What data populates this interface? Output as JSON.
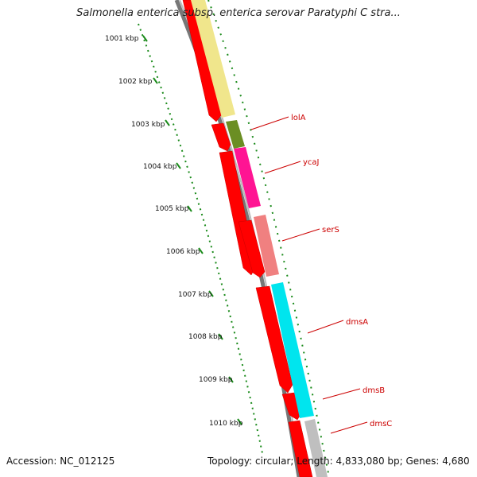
{
  "title": "Salmonella enterica subsp. enterica serovar Paratyphi C stra...",
  "footer": {
    "accession": "Accession: NC_012125",
    "summary": "Topology: circular; Length: 4,833,080 bp; Genes: 4,680"
  },
  "ruler": {
    "labels": [
      "1001 kbp",
      "1002 kbp",
      "1003 kbp",
      "1004 kbp",
      "1005 kbp",
      "1006 kbp",
      "1007 kbp",
      "1008 kbp",
      "1009 kbp",
      "1010 kbp"
    ]
  },
  "gene_labels": [
    "lolA",
    "ycaJ",
    "serS",
    "dmsA",
    "dmsB",
    "dmsC"
  ],
  "colors": {
    "backbone": "#808080",
    "forward_cds": "#ff0000",
    "tick": "#1a8a1a",
    "label": "#cc0000",
    "gene_yellow": "#f0e68c",
    "gene_olive": "#6b8e23",
    "gene_magenta": "#ff1493",
    "gene_salmon": "#f08080",
    "gene_cyan": "#00e5ee",
    "gene_gray": "#bfbfbf"
  }
}
